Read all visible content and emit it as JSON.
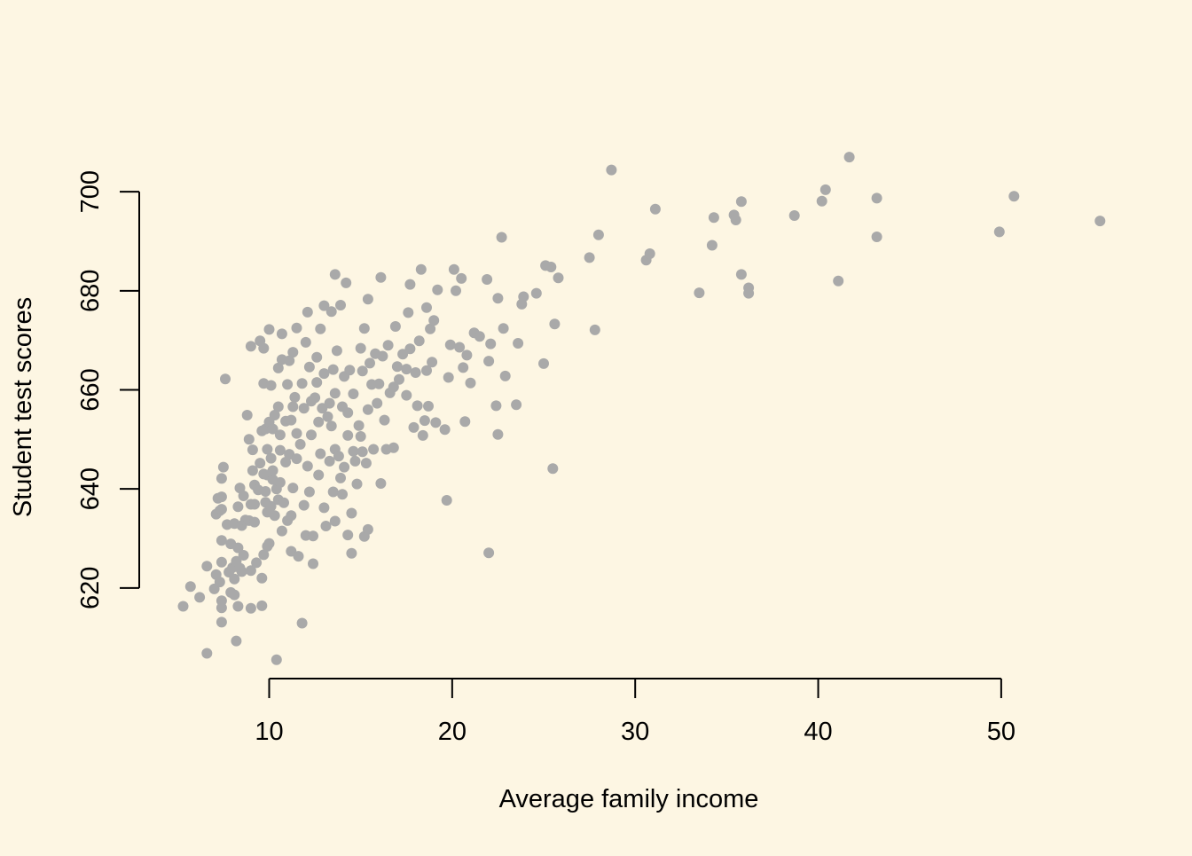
{
  "colors": {
    "background": "#FDF6E3",
    "points": "#A9A9A9",
    "axis": "#000000"
  },
  "chart_data": {
    "type": "scatter",
    "title": "",
    "xlabel": "Average family income",
    "ylabel": "Student test scores",
    "xlim": [
      2.9,
      56.5
    ],
    "ylim": [
      601.7,
      710.6
    ],
    "x_ticks": [
      10,
      20,
      30,
      40,
      50
    ],
    "y_ticks": [
      620,
      640,
      660,
      680,
      700
    ],
    "grid": false,
    "legend": "none",
    "points": [
      [
        5.3,
        616.3
      ],
      [
        5.7,
        620.3
      ],
      [
        6.2,
        618.1
      ],
      [
        6.6,
        606.8
      ],
      [
        6.6,
        624.4
      ],
      [
        7.0,
        619.8
      ],
      [
        7.1,
        622.7
      ],
      [
        7.1,
        634.9
      ],
      [
        7.2,
        638.1
      ],
      [
        7.3,
        635.6
      ],
      [
        7.3,
        621.2
      ],
      [
        7.4,
        616.0
      ],
      [
        7.4,
        613.1
      ],
      [
        7.4,
        617.4
      ],
      [
        7.4,
        625.2
      ],
      [
        7.4,
        629.6
      ],
      [
        7.4,
        635.9
      ],
      [
        7.4,
        638.4
      ],
      [
        7.4,
        642.1
      ],
      [
        7.5,
        644.4
      ],
      [
        7.6,
        662.2
      ],
      [
        7.7,
        632.8
      ],
      [
        7.8,
        623.2
      ],
      [
        7.9,
        619.1
      ],
      [
        7.9,
        628.9
      ],
      [
        8.0,
        624.1
      ],
      [
        8.1,
        621.8
      ],
      [
        8.1,
        618.6
      ],
      [
        8.1,
        633.0
      ],
      [
        8.2,
        609.3
      ],
      [
        8.2,
        625.4
      ],
      [
        8.3,
        628.1
      ],
      [
        8.3,
        616.3
      ],
      [
        8.3,
        636.4
      ],
      [
        8.4,
        640.2
      ],
      [
        8.4,
        624.0
      ],
      [
        8.5,
        623.3
      ],
      [
        8.5,
        632.6
      ],
      [
        8.6,
        626.6
      ],
      [
        8.6,
        638.6
      ],
      [
        8.7,
        633.7
      ],
      [
        8.8,
        654.9
      ],
      [
        8.9,
        650.0
      ],
      [
        8.9,
        633.6
      ],
      [
        9.0,
        623.5
      ],
      [
        9.0,
        615.9
      ],
      [
        9.0,
        636.9
      ],
      [
        9.0,
        668.8
      ],
      [
        9.1,
        643.7
      ],
      [
        9.1,
        647.9
      ],
      [
        9.2,
        640.8
      ],
      [
        9.2,
        633.3
      ],
      [
        9.2,
        636.9
      ],
      [
        9.3,
        625.1
      ],
      [
        9.4,
        639.8
      ],
      [
        9.5,
        669.9
      ],
      [
        9.5,
        645.2
      ],
      [
        9.6,
        651.7
      ],
      [
        9.6,
        622.0
      ],
      [
        9.6,
        616.4
      ],
      [
        9.7,
        626.7
      ],
      [
        9.7,
        643.0
      ],
      [
        9.7,
        661.3
      ],
      [
        9.7,
        668.4
      ],
      [
        9.8,
        639.5
      ],
      [
        9.8,
        637.3
      ],
      [
        9.8,
        652.1
      ],
      [
        9.9,
        628.4
      ],
      [
        9.9,
        635.3
      ],
      [
        9.9,
        642.8
      ],
      [
        9.9,
        648.0
      ],
      [
        10.0,
        672.2
      ],
      [
        10.0,
        653.5
      ],
      [
        10.0,
        629.0
      ],
      [
        10.1,
        660.9
      ],
      [
        10.1,
        636.5
      ],
      [
        10.1,
        646.2
      ],
      [
        10.2,
        641.9
      ],
      [
        10.2,
        652.1
      ],
      [
        10.2,
        643.7
      ],
      [
        10.3,
        654.9
      ],
      [
        10.3,
        634.6
      ],
      [
        10.4,
        605.5
      ],
      [
        10.4,
        640.0
      ],
      [
        10.5,
        637.8
      ],
      [
        10.5,
        664.4
      ],
      [
        10.5,
        656.6
      ],
      [
        10.6,
        650.9
      ],
      [
        10.6,
        647.8
      ],
      [
        10.6,
        641.3
      ],
      [
        10.7,
        631.5
      ],
      [
        10.7,
        671.3
      ],
      [
        10.7,
        666.1
      ],
      [
        10.8,
        637.2
      ],
      [
        10.9,
        653.7
      ],
      [
        10.9,
        645.4
      ],
      [
        11.0,
        633.6
      ],
      [
        11.0,
        661.1
      ],
      [
        11.1,
        665.9
      ],
      [
        11.1,
        647.0
      ],
      [
        11.2,
        653.9
      ],
      [
        11.2,
        634.6
      ],
      [
        11.2,
        627.4
      ],
      [
        11.3,
        667.6
      ],
      [
        11.3,
        640.2
      ],
      [
        11.3,
        656.6
      ],
      [
        11.4,
        658.5
      ],
      [
        11.5,
        651.2
      ],
      [
        11.5,
        646.1
      ],
      [
        11.5,
        672.5
      ],
      [
        11.6,
        626.4
      ],
      [
        11.7,
        649.0
      ],
      [
        11.8,
        612.9
      ],
      [
        11.8,
        661.3
      ],
      [
        11.9,
        656.3
      ],
      [
        11.9,
        636.7
      ],
      [
        12.0,
        630.6
      ],
      [
        12.0,
        669.6
      ],
      [
        12.1,
        675.7
      ],
      [
        12.1,
        644.6
      ],
      [
        12.2,
        664.6
      ],
      [
        12.2,
        639.4
      ],
      [
        12.3,
        657.7
      ],
      [
        12.3,
        650.9
      ],
      [
        12.4,
        630.5
      ],
      [
        12.4,
        624.9
      ],
      [
        12.5,
        658.4
      ],
      [
        12.6,
        666.6
      ],
      [
        12.6,
        661.5
      ],
      [
        12.7,
        653.5
      ],
      [
        12.7,
        642.8
      ],
      [
        12.8,
        647.1
      ],
      [
        12.8,
        672.3
      ],
      [
        12.9,
        656.3
      ],
      [
        13.0,
        677.0
      ],
      [
        13.0,
        636.2
      ],
      [
        13.0,
        663.3
      ],
      [
        13.1,
        632.5
      ],
      [
        13.2,
        654.6
      ],
      [
        13.3,
        645.6
      ],
      [
        13.3,
        657.3
      ],
      [
        13.4,
        675.8
      ],
      [
        13.4,
        652.7
      ],
      [
        13.5,
        639.4
      ],
      [
        13.5,
        664.1
      ],
      [
        13.6,
        683.3
      ],
      [
        13.6,
        659.3
      ],
      [
        13.6,
        648.0
      ],
      [
        13.6,
        633.5
      ],
      [
        13.7,
        667.9
      ],
      [
        13.8,
        646.6
      ],
      [
        13.9,
        642.2
      ],
      [
        13.9,
        677.1
      ],
      [
        14.0,
        638.9
      ],
      [
        14.0,
        656.6
      ],
      [
        14.1,
        662.7
      ],
      [
        14.1,
        644.4
      ],
      [
        14.2,
        681.6
      ],
      [
        14.3,
        630.7
      ],
      [
        14.3,
        650.8
      ],
      [
        14.3,
        655.4
      ],
      [
        14.4,
        664.0
      ],
      [
        14.5,
        635.1
      ],
      [
        14.5,
        627.0
      ],
      [
        14.6,
        659.2
      ],
      [
        14.6,
        647.6
      ],
      [
        14.7,
        645.6
      ],
      [
        14.8,
        641.0
      ],
      [
        14.9,
        652.8
      ],
      [
        15.0,
        650.6
      ],
      [
        15.0,
        668.4
      ],
      [
        15.1,
        663.8
      ],
      [
        15.1,
        647.5
      ],
      [
        15.2,
        672.4
      ],
      [
        15.2,
        630.4
      ],
      [
        15.3,
        645.2
      ],
      [
        15.4,
        678.3
      ],
      [
        15.4,
        631.8
      ],
      [
        15.4,
        656.0
      ],
      [
        15.5,
        665.4
      ],
      [
        15.6,
        661.1
      ],
      [
        15.7,
        648.0
      ],
      [
        15.8,
        667.3
      ],
      [
        15.9,
        657.3
      ],
      [
        16.0,
        661.2
      ],
      [
        16.1,
        682.7
      ],
      [
        16.1,
        641.1
      ],
      [
        16.2,
        666.8
      ],
      [
        16.3,
        653.9
      ],
      [
        16.4,
        648.0
      ],
      [
        16.5,
        669.0
      ],
      [
        16.6,
        659.4
      ],
      [
        16.8,
        648.3
      ],
      [
        16.8,
        660.6
      ],
      [
        16.9,
        672.8
      ],
      [
        17.0,
        664.7
      ],
      [
        17.1,
        662.1
      ],
      [
        17.3,
        667.2
      ],
      [
        17.5,
        658.9
      ],
      [
        17.5,
        664.2
      ],
      [
        17.6,
        675.6
      ],
      [
        17.7,
        681.3
      ],
      [
        17.7,
        668.3
      ],
      [
        17.9,
        652.4
      ],
      [
        18.0,
        663.5
      ],
      [
        18.1,
        656.8
      ],
      [
        18.2,
        669.9
      ],
      [
        18.3,
        684.3
      ],
      [
        18.4,
        650.8
      ],
      [
        18.5,
        653.8
      ],
      [
        18.6,
        676.6
      ],
      [
        18.6,
        663.9
      ],
      [
        18.7,
        656.7
      ],
      [
        18.8,
        672.3
      ],
      [
        18.9,
        665.6
      ],
      [
        19.0,
        674.0
      ],
      [
        19.1,
        653.4
      ],
      [
        19.2,
        680.2
      ],
      [
        19.6,
        652.0
      ],
      [
        19.7,
        637.7
      ],
      [
        19.8,
        662.5
      ],
      [
        19.9,
        669.1
      ],
      [
        20.1,
        684.3
      ],
      [
        20.2,
        680.0
      ],
      [
        20.4,
        668.6
      ],
      [
        20.5,
        682.5
      ],
      [
        20.6,
        664.5
      ],
      [
        20.7,
        653.6
      ],
      [
        20.8,
        667.0
      ],
      [
        21.0,
        661.4
      ],
      [
        21.2,
        671.5
      ],
      [
        21.5,
        670.8
      ],
      [
        21.9,
        682.3
      ],
      [
        22.0,
        665.8
      ],
      [
        22.0,
        627.1
      ],
      [
        22.1,
        669.3
      ],
      [
        22.4,
        656.8
      ],
      [
        22.5,
        651.0
      ],
      [
        22.5,
        678.5
      ],
      [
        22.7,
        690.8
      ],
      [
        22.8,
        672.4
      ],
      [
        22.9,
        662.8
      ],
      [
        23.5,
        657.0
      ],
      [
        23.6,
        669.4
      ],
      [
        23.8,
        677.3
      ],
      [
        23.9,
        678.8
      ],
      [
        24.6,
        679.5
      ],
      [
        25.0,
        665.3
      ],
      [
        25.1,
        685.1
      ],
      [
        25.4,
        684.8
      ],
      [
        25.5,
        644.1
      ],
      [
        25.6,
        673.3
      ],
      [
        25.8,
        682.6
      ],
      [
        27.5,
        686.7
      ],
      [
        27.8,
        672.1
      ],
      [
        28.0,
        691.3
      ],
      [
        28.7,
        704.4
      ],
      [
        30.6,
        686.2
      ],
      [
        30.8,
        687.5
      ],
      [
        31.1,
        696.5
      ],
      [
        33.5,
        679.6
      ],
      [
        34.2,
        689.2
      ],
      [
        34.3,
        694.8
      ],
      [
        35.4,
        695.3
      ],
      [
        35.5,
        694.3
      ],
      [
        35.8,
        683.3
      ],
      [
        35.8,
        698.0
      ],
      [
        36.2,
        680.6
      ],
      [
        36.2,
        679.5
      ],
      [
        38.7,
        695.2
      ],
      [
        40.2,
        698.1
      ],
      [
        40.4,
        700.4
      ],
      [
        41.1,
        682.0
      ],
      [
        41.7,
        707.0
      ],
      [
        43.2,
        698.7
      ],
      [
        43.2,
        690.9
      ],
      [
        49.9,
        691.9
      ],
      [
        50.7,
        699.1
      ],
      [
        55.4,
        694.1
      ]
    ]
  }
}
